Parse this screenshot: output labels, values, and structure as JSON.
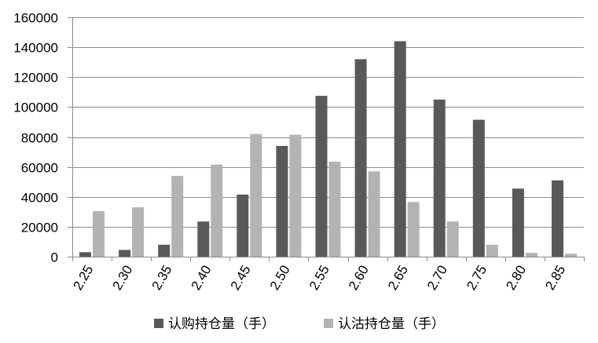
{
  "chart_data": {
    "type": "bar",
    "categories": [
      "2.25",
      "2.30",
      "2.35",
      "2.40",
      "2.45",
      "2.50",
      "2.55",
      "2.60",
      "2.65",
      "2.70",
      "2.75",
      "2.80",
      "2.85"
    ],
    "series": [
      {
        "name": "认购持仓量（手）",
        "color": "#595959",
        "values": [
          3000,
          4500,
          8000,
          23500,
          41500,
          74000,
          107500,
          132000,
          144000,
          105000,
          91500,
          45500,
          51000
        ]
      },
      {
        "name": "认沽持仓量（手）",
        "color": "#b3b3b3",
        "values": [
          30500,
          33000,
          54000,
          61500,
          82000,
          81500,
          63500,
          57000,
          36500,
          23500,
          8000,
          2500,
          2000
        ]
      }
    ],
    "yticks": [
      "0",
      "20000",
      "40000",
      "60000",
      "80000",
      "100000",
      "120000",
      "140000",
      "160000"
    ],
    "ylim": [
      0,
      160000
    ],
    "grid": true,
    "legend_position": "bottom"
  }
}
